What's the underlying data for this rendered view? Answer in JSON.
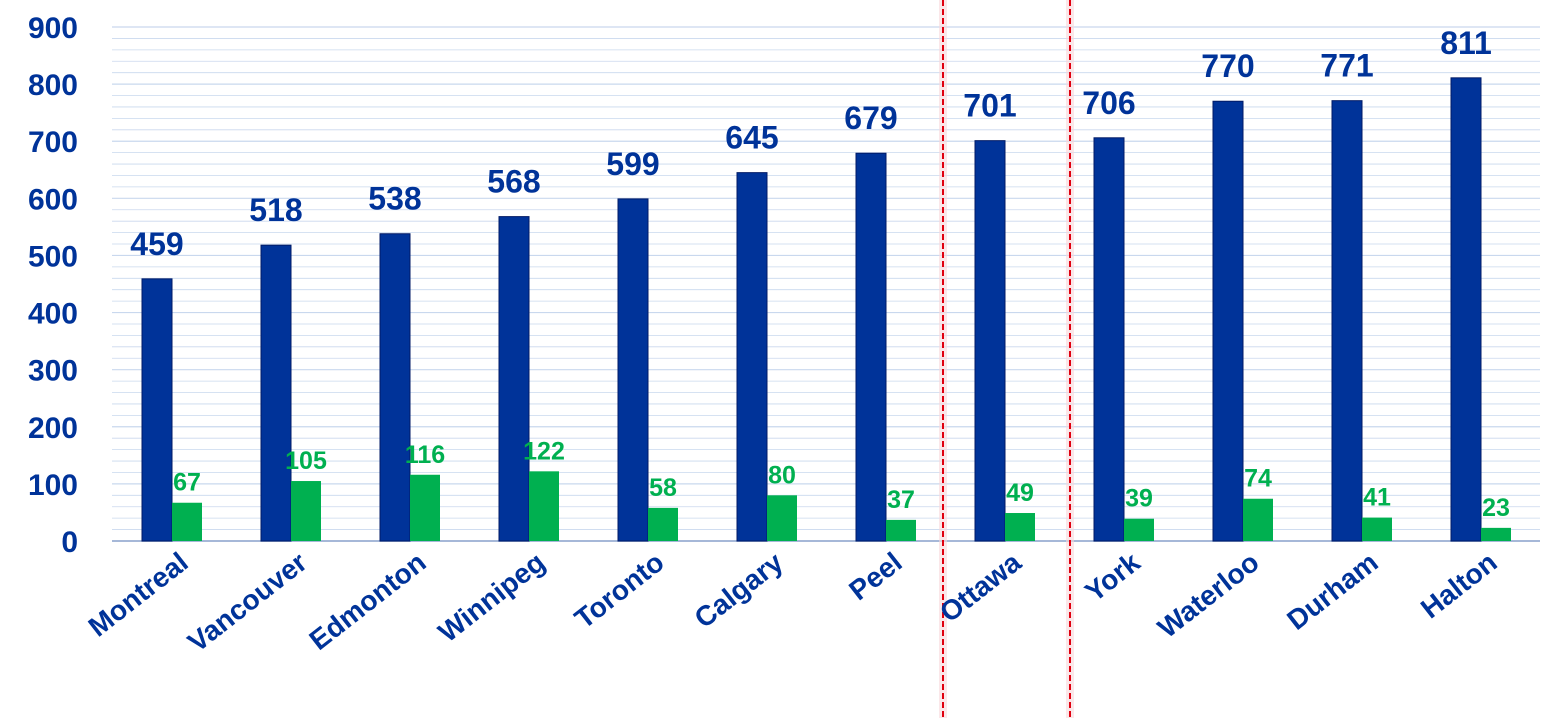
{
  "chart_data": {
    "type": "bar",
    "title": "",
    "xlabel": "",
    "ylabel": "",
    "ylim": [
      0,
      900
    ],
    "yticks": [
      "0",
      "100",
      "200",
      "300",
      "400",
      "500",
      "600",
      "700",
      "800",
      "900"
    ],
    "grid": true,
    "categories": [
      "Montreal",
      "Vancouver",
      "Edmonton",
      "Winnipeg",
      "Toronto",
      "Calgary",
      "Peel",
      "Ottawa",
      "York",
      "Waterloo",
      "Durham",
      "Halton"
    ],
    "series": [
      {
        "values": [
          459,
          518,
          538,
          568,
          599,
          645,
          679,
          701,
          706,
          770,
          771,
          811
        ],
        "color": "#003399"
      },
      {
        "values": [
          67,
          105,
          116,
          122,
          58,
          80,
          37,
          49,
          39,
          74,
          41,
          23
        ],
        "color": "#00B050"
      }
    ],
    "highlight": {
      "category": "Ottawa",
      "border_color": "#E0000F"
    },
    "colors": {
      "label_text": "#003399",
      "grid": "#C9D8EE",
      "axis": "#A6B8D8"
    }
  }
}
